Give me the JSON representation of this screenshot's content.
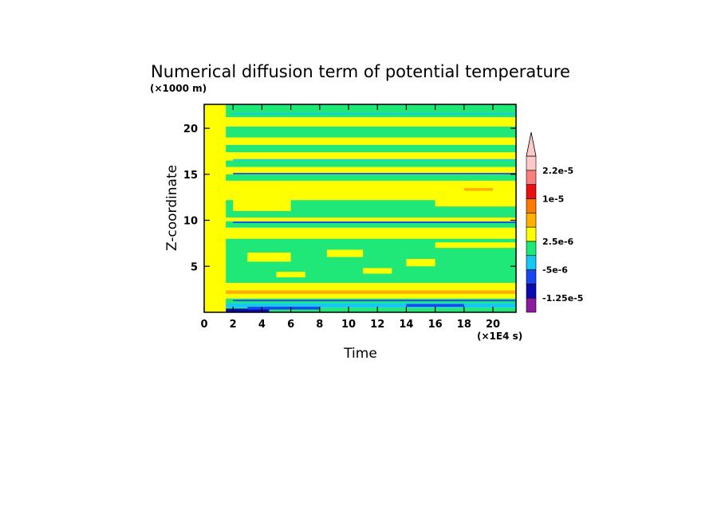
{
  "chart_data": {
    "type": "heatmap",
    "title": "Numerical diffusion term of potential temperature",
    "xlabel": "Time",
    "ylabel": "Z-coordinate",
    "x_unit": "(×1E4 s)",
    "y_unit": "(×1000 m)",
    "xlim": [
      0,
      21.6
    ],
    "ylim": [
      0,
      22.6
    ],
    "x_ticks": [
      0,
      2,
      4,
      6,
      8,
      10,
      12,
      14,
      16,
      18,
      20
    ],
    "y_ticks": [
      5,
      10,
      15,
      20
    ],
    "colorbar": {
      "levels": [
        "-1.25e-5",
        "-5e-6",
        "2.5e-6",
        "1e-5",
        "2.2e-5"
      ],
      "colors": [
        "#8B1A9C",
        "#0A0AB0",
        "#1A46F0",
        "#17C8F0",
        "#20E878",
        "#FFFF00",
        "#FFB000",
        "#FF7A00",
        "#E81010",
        "#FA8080",
        "#FFC8C8"
      ],
      "extend": "max"
    },
    "bands": [
      {
        "z": [
          0.0,
          0.5
        ],
        "color": "#20E878"
      },
      {
        "z": [
          0.5,
          1.0
        ],
        "color": "#17C8F0"
      },
      {
        "z": [
          1.0,
          1.5
        ],
        "color": "#20E878"
      },
      {
        "z": [
          1.5,
          2.0
        ],
        "color": "#FFFF00"
      },
      {
        "z": [
          2.0,
          2.4
        ],
        "color": "#FFB000"
      },
      {
        "z": [
          2.4,
          3.2
        ],
        "color": "#FFFF00"
      },
      {
        "z": [
          3.2,
          8.0
        ],
        "color": "#20E878"
      },
      {
        "z": [
          8.0,
          9.2
        ],
        "color": "#FFFF00"
      },
      {
        "z": [
          9.2,
          9.9
        ],
        "color": "#20E878"
      },
      {
        "z": [
          9.9,
          10.3
        ],
        "color": "#FFFF00"
      },
      {
        "z": [
          10.3,
          12.2
        ],
        "color": "#20E878"
      },
      {
        "z": [
          12.2,
          14.3
        ],
        "color": "#FFFF00"
      },
      {
        "z": [
          14.3,
          15.0
        ],
        "color": "#20E878"
      },
      {
        "z": [
          15.0,
          15.8
        ],
        "color": "#FFFF00"
      },
      {
        "z": [
          15.8,
          16.5
        ],
        "color": "#20E878"
      },
      {
        "z": [
          16.5,
          17.4
        ],
        "color": "#FFFF00"
      },
      {
        "z": [
          17.4,
          18.2
        ],
        "color": "#20E878"
      },
      {
        "z": [
          18.2,
          19.0
        ],
        "color": "#FFFF00"
      },
      {
        "z": [
          19.0,
          20.2
        ],
        "color": "#20E878"
      },
      {
        "z": [
          20.2,
          21.2
        ],
        "color": "#FFFF00"
      },
      {
        "z": [
          21.2,
          22.6
        ],
        "color": "#20E878"
      }
    ],
    "patches": [
      {
        "x": [
          1.5,
          4.5
        ],
        "z": [
          0.0,
          0.4
        ],
        "color": "#0A0AB0"
      },
      {
        "x": [
          3.0,
          8.0
        ],
        "z": [
          0.3,
          0.6
        ],
        "color": "#1A46F0"
      },
      {
        "x": [
          14.0,
          18.0
        ],
        "z": [
          0.6,
          0.9
        ],
        "color": "#1A46F0"
      },
      {
        "x": [
          2.0,
          21.6
        ],
        "z": [
          1.2,
          1.35
        ],
        "color": "#1A46F0"
      },
      {
        "x": [
          0.0,
          1.5
        ],
        "z": [
          0.0,
          22.6
        ],
        "color": "#FFFF00"
      },
      {
        "x": [
          3.0,
          6.0
        ],
        "z": [
          5.5,
          6.5
        ],
        "color": "#FFFF00"
      },
      {
        "x": [
          8.5,
          11.0
        ],
        "z": [
          6.0,
          6.8
        ],
        "color": "#FFFF00"
      },
      {
        "x": [
          14.0,
          16.0
        ],
        "z": [
          5.0,
          5.8
        ],
        "color": "#FFFF00"
      },
      {
        "x": [
          5.0,
          7.0
        ],
        "z": [
          3.8,
          4.4
        ],
        "color": "#FFFF00"
      },
      {
        "x": [
          11.0,
          13.0
        ],
        "z": [
          4.2,
          4.8
        ],
        "color": "#FFFF00"
      },
      {
        "x": [
          16.0,
          21.6
        ],
        "z": [
          7.0,
          7.6
        ],
        "color": "#FFFF00"
      },
      {
        "x": [
          2.0,
          21.6
        ],
        "z": [
          9.7,
          9.85
        ],
        "color": "#1A46F0"
      },
      {
        "x": [
          2.0,
          6.0
        ],
        "z": [
          11.0,
          12.2
        ],
        "color": "#FFFF00"
      },
      {
        "x": [
          16.0,
          21.6
        ],
        "z": [
          11.5,
          12.2
        ],
        "color": "#FFFF00"
      },
      {
        "x": [
          18.0,
          20.0
        ],
        "z": [
          13.2,
          13.5
        ],
        "color": "#FFB000"
      },
      {
        "x": [
          2.0,
          21.6
        ],
        "z": [
          15.0,
          15.15
        ],
        "color": "#1A46F0"
      },
      {
        "x": [
          2.0,
          21.6
        ],
        "z": [
          16.5,
          16.65
        ],
        "color": "#17C8F0"
      },
      {
        "x": [
          2.0,
          21.6
        ],
        "z": [
          21.5,
          21.65
        ],
        "color": "#17C8F0"
      }
    ]
  }
}
